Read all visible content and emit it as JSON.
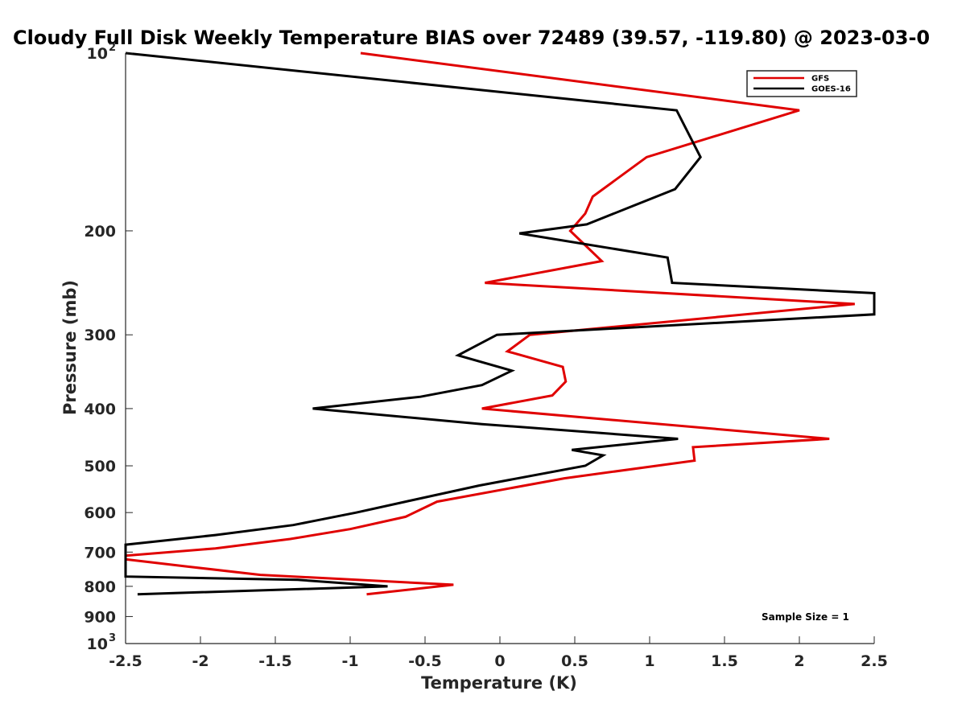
{
  "chart_data": {
    "type": "line",
    "title": "Cloudy Full Disk Weekly Temperature BIAS over 72489 (39.57, -119.80) @ 2023-03-0",
    "xlabel": "Temperature (K)",
    "ylabel": "Pressure (mb)",
    "xlim": [
      -2.5,
      2.5
    ],
    "ylim": [
      100,
      1000
    ],
    "y_scale": "log",
    "y_reversed": true,
    "x_ticks": [
      "-2.5",
      "-2",
      "-1.5",
      "-1",
      "-0.5",
      "0",
      "0.5",
      "1",
      "1.5",
      "2",
      "2.5"
    ],
    "y_ticks": [
      {
        "value": 100,
        "label": "10",
        "sup": "2"
      },
      {
        "value": 200,
        "label": "200",
        "sup": ""
      },
      {
        "value": 300,
        "label": "300",
        "sup": ""
      },
      {
        "value": 400,
        "label": "400",
        "sup": ""
      },
      {
        "value": 500,
        "label": "500",
        "sup": ""
      },
      {
        "value": 600,
        "label": "600",
        "sup": ""
      },
      {
        "value": 700,
        "label": "700",
        "sup": ""
      },
      {
        "value": 800,
        "label": "800",
        "sup": ""
      },
      {
        "value": 900,
        "label": "900",
        "sup": ""
      },
      {
        "value": 1000,
        "label": "10",
        "sup": "3"
      }
    ],
    "legend_position": "top-right",
    "grid": false,
    "annotation": "Sample Size = 1",
    "series": [
      {
        "name": "GFS",
        "color": "#e00000",
        "points": [
          [
            -0.93,
            100
          ],
          [
            2.0,
            125
          ],
          [
            0.98,
            150
          ],
          [
            0.62,
            175
          ],
          [
            0.57,
            187
          ],
          [
            0.47,
            200
          ],
          [
            0.68,
            225
          ],
          [
            -0.1,
            245
          ],
          [
            2.37,
            266
          ],
          [
            0.2,
            300
          ],
          [
            0.05,
            320
          ],
          [
            0.42,
            340
          ],
          [
            0.44,
            360
          ],
          [
            0.35,
            380
          ],
          [
            -0.12,
            400
          ],
          [
            2.2,
            450
          ],
          [
            1.29,
            465
          ],
          [
            1.3,
            490
          ],
          [
            0.43,
            525
          ],
          [
            -0.42,
            575
          ],
          [
            -0.63,
            610
          ],
          [
            -1.0,
            640
          ],
          [
            -1.4,
            665
          ],
          [
            -1.9,
            690
          ],
          [
            -2.5,
            710
          ],
          [
            -2.5,
            720
          ],
          [
            -2.1,
            740
          ],
          [
            -1.6,
            765
          ],
          [
            -0.31,
            795
          ],
          [
            -0.89,
            825
          ]
        ]
      },
      {
        "name": "GOES-16",
        "color": "#000000",
        "points": [
          [
            -2.5,
            100
          ],
          [
            1.18,
            125
          ],
          [
            1.34,
            150
          ],
          [
            1.17,
            170
          ],
          [
            0.58,
            195
          ],
          [
            0.13,
            202
          ],
          [
            1.12,
            222
          ],
          [
            1.15,
            245
          ],
          [
            2.5,
            255
          ],
          [
            2.5,
            277
          ],
          [
            -0.02,
            300
          ],
          [
            -0.28,
            325
          ],
          [
            0.08,
            345
          ],
          [
            -0.12,
            365
          ],
          [
            -0.53,
            382
          ],
          [
            -1.25,
            400
          ],
          [
            -0.12,
            425
          ],
          [
            1.19,
            450
          ],
          [
            0.48,
            470
          ],
          [
            0.69,
            480
          ],
          [
            0.57,
            500
          ],
          [
            -0.14,
            540
          ],
          [
            -0.63,
            575
          ],
          [
            -0.96,
            600
          ],
          [
            -1.38,
            630
          ],
          [
            -1.9,
            655
          ],
          [
            -2.5,
            680
          ],
          [
            -2.5,
            770
          ],
          [
            -1.35,
            780
          ],
          [
            -0.75,
            800
          ],
          [
            -2.42,
            825
          ]
        ]
      }
    ]
  }
}
